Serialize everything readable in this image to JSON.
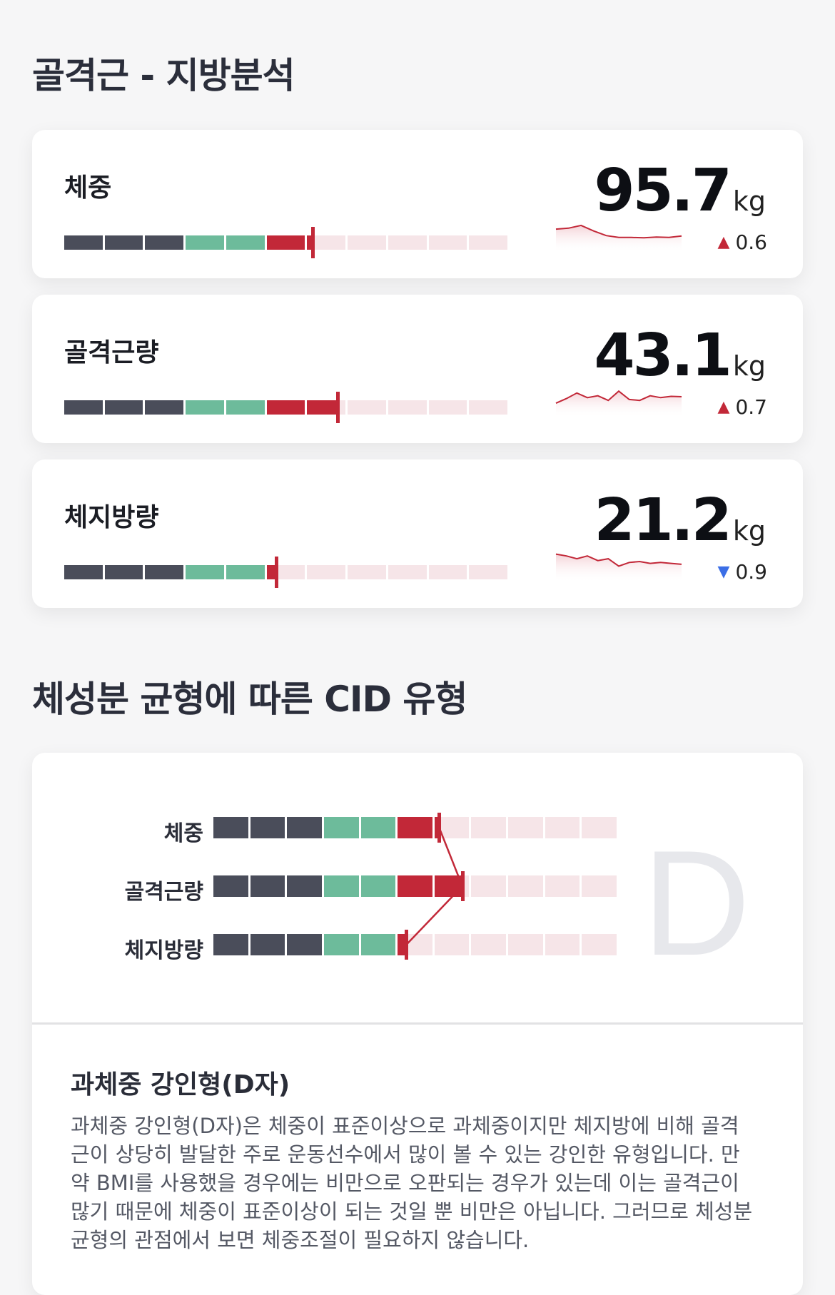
{
  "section1": {
    "title": "골격근 - 지방분석"
  },
  "metrics": [
    {
      "label": "체중",
      "value": "95.7",
      "unit": "kg",
      "delta": "0.6",
      "delta_dir": "up",
      "level": 0.557,
      "trend": [
        0.35,
        0.3,
        0.15,
        0.45,
        0.7,
        0.8,
        0.8,
        0.82,
        0.78,
        0.8,
        0.72
      ]
    },
    {
      "label": "골격근량",
      "value": "43.1",
      "unit": "kg",
      "delta": "0.7",
      "delta_dir": "up",
      "level": 0.614,
      "trend": [
        0.85,
        0.6,
        0.3,
        0.55,
        0.45,
        0.7,
        0.2,
        0.65,
        0.7,
        0.45,
        0.55,
        0.48,
        0.5
      ]
    },
    {
      "label": "체지방량",
      "value": "21.2",
      "unit": "kg",
      "delta": "0.9",
      "delta_dir": "down",
      "level": 0.476,
      "trend": [
        0.1,
        0.2,
        0.35,
        0.2,
        0.45,
        0.35,
        0.75,
        0.55,
        0.5,
        0.6,
        0.55,
        0.6,
        0.65
      ]
    }
  ],
  "section2": {
    "title": "체성분 균형에 따른 CID 유형"
  },
  "cid": {
    "letter": "D",
    "rows": [
      {
        "label": "체중",
        "level": 0.557
      },
      {
        "label": "골격근량",
        "level": 0.614
      },
      {
        "label": "체지방량",
        "level": 0.476
      }
    ],
    "type_title": "과체중 강인형(D자)",
    "type_description": "과체중 강인형(D자)은 체중이 표준이상으로 과체중이지만 체지방에 비해 골격근이 상당히 발달한 주로 운동선수에서 많이 볼 수 있는 강인한 유형입니다. 만약 BMI를 사용했을 경우에는 비만으로 오판되는 경우가 있는데 이는 골격근이 많기 때문에 체중이 표준이상이 되는 것일 뿐 비만은 아닙니다. 그러므로 체성분 균형의 관점에서 보면 체중조절이 필요하지 않습니다."
  },
  "colors": {
    "under": "#4a4d5a",
    "normal": "#6dbb9b",
    "over": "#c22838",
    "empty": "#f6e5e8",
    "accent": "#c22838",
    "down": "#3b6ee6"
  }
}
